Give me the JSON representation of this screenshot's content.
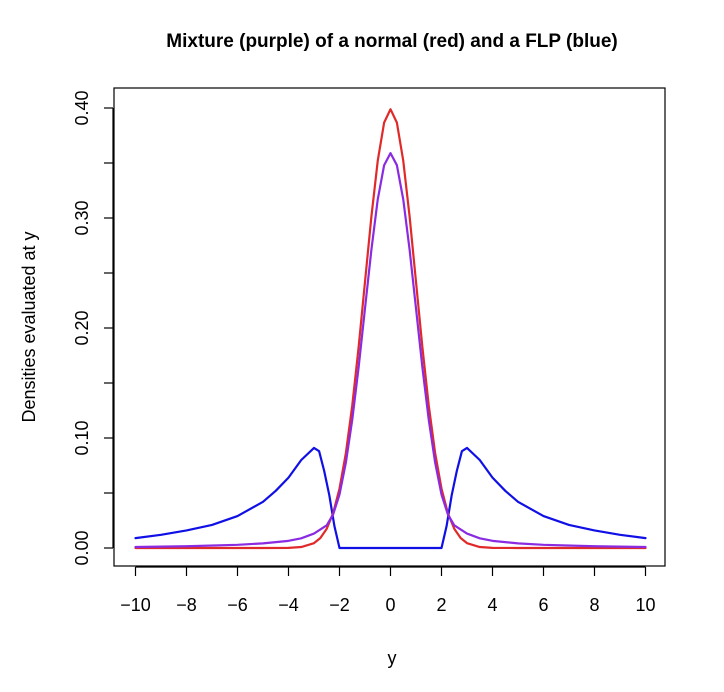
{
  "chart_data": {
    "type": "line",
    "title": "Mixture (purple) of a normal (red) and a FLP (blue)",
    "xlabel": "y",
    "ylabel": "Densities evaluated at y",
    "xlim": [
      -10,
      10
    ],
    "ylim": [
      0,
      0.4
    ],
    "x_ticks": [
      -10,
      -8,
      -6,
      -4,
      -2,
      0,
      2,
      4,
      6,
      8,
      10
    ],
    "x_tick_labels": [
      "−10",
      "−8",
      "−6",
      "−4",
      "−2",
      "0",
      "2",
      "4",
      "6",
      "8",
      "10"
    ],
    "y_ticks": [
      0,
      0.05,
      0.1,
      0.15,
      0.2,
      0.25,
      0.3,
      0.35,
      0.4
    ],
    "y_tick_labels": [
      "0.00",
      "",
      "0.10",
      "",
      "0.20",
      "",
      "0.30",
      "",
      "0.40"
    ],
    "grid": false,
    "legend": "none",
    "series": [
      {
        "color": "#1010e6",
        "x": [
          -10,
          -9,
          -8,
          -7,
          -6,
          -5,
          -4.5,
          -4,
          -3.5,
          -3,
          -2.8,
          -2.6,
          -2.4,
          -2.2,
          -2,
          2,
          2.2,
          2.4,
          2.6,
          2.8,
          3,
          3.5,
          4,
          4.5,
          5,
          6,
          7,
          8,
          9,
          10
        ],
        "y": [
          0.009,
          0.012,
          0.016,
          0.021,
          0.029,
          0.042,
          0.052,
          0.064,
          0.08,
          0.091,
          0.088,
          0.07,
          0.048,
          0.02,
          0,
          0,
          0.02,
          0.048,
          0.07,
          0.088,
          0.091,
          0.08,
          0.064,
          0.052,
          0.042,
          0.029,
          0.021,
          0.016,
          0.012,
          0.009
        ]
      },
      {
        "color": "#e02a2a",
        "x": [
          -10,
          -5,
          -4,
          -3.5,
          -3,
          -2.75,
          -2.5,
          -2.25,
          -2,
          -1.75,
          -1.5,
          -1.25,
          -1,
          -0.75,
          -0.5,
          -0.25,
          0,
          0.25,
          0.5,
          0.75,
          1,
          1.25,
          1.5,
          1.75,
          2,
          2.25,
          2.5,
          2.75,
          3,
          3.5,
          4,
          5,
          10
        ],
        "y": [
          0,
          0,
          0.0001,
          0.0009,
          0.0044,
          0.0091,
          0.0175,
          0.0317,
          0.054,
          0.0863,
          0.1295,
          0.1826,
          0.242,
          0.3011,
          0.3521,
          0.3867,
          0.3989,
          0.3867,
          0.3521,
          0.3011,
          0.242,
          0.1826,
          0.1295,
          0.0863,
          0.054,
          0.0317,
          0.0175,
          0.0091,
          0.0044,
          0.0009,
          0.0001,
          0,
          0
        ]
      },
      {
        "color": "#8a2be2",
        "x": [
          -10,
          -8,
          -6,
          -5,
          -4,
          -3.5,
          -3,
          -2.75,
          -2.5,
          -2.25,
          -2,
          -1.75,
          -1.5,
          -1.25,
          -1,
          -0.75,
          -0.5,
          -0.25,
          0,
          0.25,
          0.5,
          0.75,
          1,
          1.25,
          1.5,
          1.75,
          2,
          2.25,
          2.5,
          2.75,
          3,
          3.5,
          4,
          5,
          6,
          8,
          10
        ],
        "y": [
          0.0009,
          0.0016,
          0.0029,
          0.0042,
          0.0065,
          0.0088,
          0.0131,
          0.0169,
          0.0206,
          0.0305,
          0.0486,
          0.0777,
          0.1166,
          0.1643,
          0.2178,
          0.271,
          0.3169,
          0.348,
          0.359,
          0.348,
          0.3169,
          0.271,
          0.2178,
          0.1643,
          0.1166,
          0.0777,
          0.0486,
          0.0305,
          0.0206,
          0.0169,
          0.0131,
          0.0088,
          0.0065,
          0.0042,
          0.0029,
          0.0016,
          0.0009
        ]
      }
    ]
  }
}
